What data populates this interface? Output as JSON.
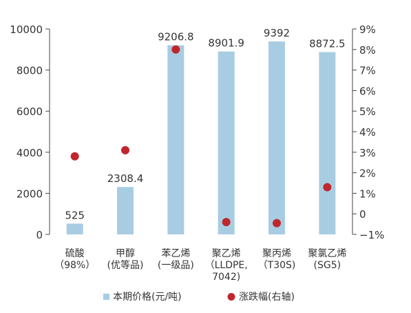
{
  "chart_data": {
    "type": "bar",
    "categories": [
      [
        "硫酸",
        "（98%）"
      ],
      [
        "甲醇",
        "(优等品)"
      ],
      [
        "苯乙烯",
        "(一级品)"
      ],
      [
        "聚乙烯",
        "（LLDPE,",
        "7042)"
      ],
      [
        "聚丙烯",
        "（T30S)"
      ],
      [
        "聚氯乙烯",
        "(SG5)"
      ]
    ],
    "series": [
      {
        "name": "本期价格(元/吨)",
        "type": "bar",
        "axis": "left",
        "color": "#a8cde2",
        "values": [
          525,
          2308.4,
          9206.8,
          8901.9,
          9392,
          8872.5
        ],
        "labels": [
          "525",
          "2308.4",
          "9206.8",
          "8901.9",
          "9392",
          "8872.5"
        ]
      },
      {
        "name": "涨跌幅(右轴)",
        "type": "scatter",
        "axis": "right",
        "color": "#c0272d",
        "values": [
          2.8,
          3.1,
          8.0,
          -0.4,
          -0.45,
          1.3
        ]
      }
    ],
    "y_left": {
      "min": 0,
      "max": 10000,
      "ticks": [
        0,
        2000,
        4000,
        6000,
        8000,
        10000
      ],
      "tick_labels": [
        "0",
        "2000",
        "4000",
        "6000",
        "8000",
        "10000"
      ]
    },
    "y_right": {
      "min": -1,
      "max": 9,
      "ticks": [
        -1,
        0,
        1,
        2,
        3,
        4,
        5,
        6,
        7,
        8,
        9
      ],
      "tick_labels": [
        "−1%",
        "0",
        "1%",
        "2%",
        "3%",
        "4%",
        "5%",
        "6%",
        "7%",
        "8%",
        "9%"
      ]
    },
    "legend_position": "bottom",
    "grid": false
  }
}
